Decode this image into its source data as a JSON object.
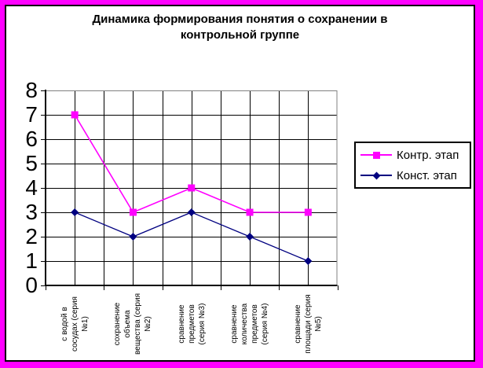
{
  "window": {
    "frame_color": "#FF00FF",
    "inner_border_color": "#000000",
    "background": "#FFFFFF"
  },
  "chart_data": {
    "type": "line",
    "title": "Динамика формирования понятия о сохранении в контрольной группе",
    "title_lines": [
      "Динамика формирования  понятия о сохранении в",
      "контрольной группе"
    ],
    "categories": [
      "с водой в сосудах (серия №1)",
      "сохранение объема вещества (серия №2)",
      "сравнение предметов (серия №3)",
      "сравнение количества предметов (серия №4)",
      "сравнение площади (серия №5)"
    ],
    "categories_wrapped": [
      [
        "с водой в",
        "сосудах (серия",
        "№1)"
      ],
      [
        "сохранение",
        "объема",
        "вещества (серия",
        "№2)"
      ],
      [
        "сравнение",
        "предметов",
        "(серия №3)"
      ],
      [
        "сравнение",
        "количества",
        "предметов",
        "(серия №4)"
      ],
      [
        "сравнение",
        "площади (серия",
        "№5)"
      ]
    ],
    "series": [
      {
        "name": "Контр. этап",
        "values": [
          7,
          3,
          4,
          3,
          3
        ],
        "color": "#FF00FF",
        "marker": "square"
      },
      {
        "name": "Конст. этап",
        "values": [
          3,
          2,
          3,
          2,
          1
        ],
        "color": "#000080",
        "marker": "diamond"
      }
    ],
    "ylim": [
      0,
      8
    ],
    "yticks": [
      0,
      1,
      2,
      3,
      4,
      5,
      6,
      7,
      8
    ],
    "xlabel": "",
    "ylabel": "",
    "grid": true,
    "legend_position": "right",
    "colors": {
      "gridline": "#000000",
      "plot_border_gray": "#808080",
      "axis": "#000000"
    }
  }
}
